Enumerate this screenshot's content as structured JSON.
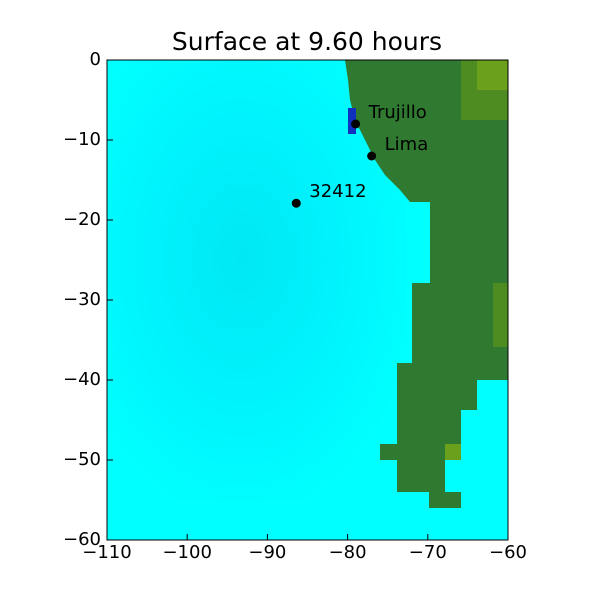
{
  "chart_data": {
    "type": "scatter",
    "title": "Surface at 9.60 hours",
    "x": [
      -79,
      -77,
      -86.4
    ],
    "values": [
      -8,
      -12,
      -17.9
    ],
    "point_labels": [
      "Trujillo",
      "Lima",
      "32412"
    ],
    "color": "#000000",
    "xlim": [
      -110,
      -60
    ],
    "ylim": [
      -60,
      0
    ],
    "xticks": [
      {
        "value": -110,
        "label": "−110"
      },
      {
        "value": -100,
        "label": "−100"
      },
      {
        "value": -90,
        "label": "−90"
      },
      {
        "value": -80,
        "label": "−80"
      },
      {
        "value": -70,
        "label": "−70"
      },
      {
        "value": -60,
        "label": "−60"
      }
    ],
    "yticks": [
      0,
      {
        "value": -10,
        "label": "−10"
      },
      {
        "value": -20,
        "label": "−20"
      },
      {
        "value": -30,
        "label": "−30"
      },
      {
        "value": -40,
        "label": "−40"
      },
      {
        "value": -50,
        "label": "−50"
      },
      {
        "value": -60,
        "label": "−60"
      }
    ]
  }
}
